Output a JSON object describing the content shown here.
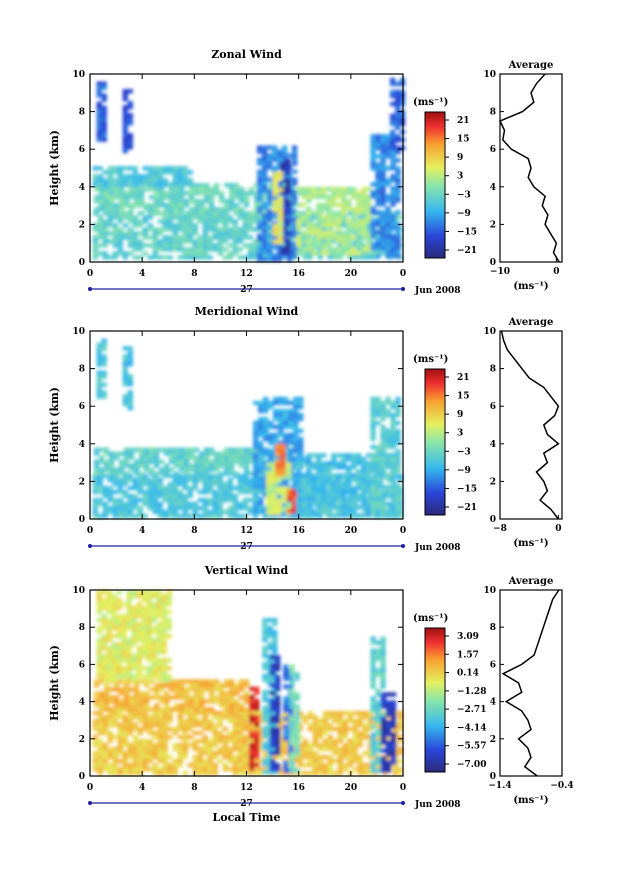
{
  "panels": [
    {
      "id": "zonal",
      "title": "Zonal Wind",
      "chart_data": {
        "type": "heatmap",
        "ylabel": "Height (km)",
        "xlim": [
          0,
          24
        ],
        "ylim": [
          0,
          10
        ],
        "xticks": [
          "0",
          "4",
          "8",
          "12",
          "16",
          "20",
          "0"
        ],
        "yticks": [
          "0",
          "2",
          "4",
          "6",
          "8",
          "10"
        ],
        "date_center": "27",
        "date_right": "Jun 2008",
        "colorbar": {
          "unit": "(ms⁻¹)",
          "ticks": [
            "21",
            "15",
            "9",
            "3",
            "−3",
            "−9",
            "−15",
            "−21"
          ],
          "range": [
            -24,
            24
          ]
        },
        "blobs": [
          {
            "x0": 0.2,
            "x1": 23.6,
            "y0": 0.2,
            "y1": 2.7,
            "v": -4
          },
          {
            "x0": 0.3,
            "x1": 15.5,
            "y0": 2.7,
            "y1": 4.2,
            "v": -3
          },
          {
            "x0": 0.2,
            "x1": 7.5,
            "y0": 4.2,
            "y1": 5.1,
            "v": -6
          },
          {
            "x0": 12.8,
            "x1": 15.8,
            "y0": 0.2,
            "y1": 6.2,
            "v": -12
          },
          {
            "x0": 14.6,
            "x1": 15.3,
            "y0": 0.5,
            "y1": 5.5,
            "v": -20
          },
          {
            "x0": 14.0,
            "x1": 14.5,
            "y0": 1.0,
            "y1": 4.8,
            "v": 6
          },
          {
            "x0": 15.8,
            "x1": 21.5,
            "y0": 0.5,
            "y1": 4.0,
            "v": 2
          },
          {
            "x0": 21.5,
            "x1": 23.8,
            "y0": 0.3,
            "y1": 6.8,
            "v": -12
          },
          {
            "x0": 0.5,
            "x1": 1.2,
            "y0": 6.6,
            "y1": 9.6,
            "v": -15
          },
          {
            "x0": 2.5,
            "x1": 3.2,
            "y0": 6.0,
            "y1": 9.2,
            "v": -16
          },
          {
            "x0": 23.0,
            "x1": 23.8,
            "y0": 6.0,
            "y1": 9.8,
            "v": -15
          }
        ]
      },
      "profile": {
        "title": "Average",
        "xlabel": "(ms⁻¹)",
        "xlim": [
          -10,
          1
        ],
        "ylim": [
          0,
          10
        ],
        "xticks": [
          "−10",
          "0"
        ],
        "yticks": [
          "0",
          "2",
          "4",
          "6",
          "8",
          "10"
        ],
        "points": [
          [
            0.5,
            0
          ],
          [
            -0.5,
            0.5
          ],
          [
            0,
            1
          ],
          [
            -1,
            1.5
          ],
          [
            -2,
            2
          ],
          [
            -1.5,
            2.5
          ],
          [
            -2.5,
            3
          ],
          [
            -2,
            3.5
          ],
          [
            -4,
            4
          ],
          [
            -5,
            4.5
          ],
          [
            -4.5,
            5
          ],
          [
            -5,
            5.5
          ],
          [
            -8,
            6
          ],
          [
            -9.5,
            6.5
          ],
          [
            -9.2,
            7
          ],
          [
            -10,
            7.5
          ],
          [
            -6,
            8
          ],
          [
            -4,
            8.5
          ],
          [
            -4.5,
            9
          ],
          [
            -3.5,
            9.5
          ],
          [
            -2,
            10
          ]
        ]
      }
    },
    {
      "id": "meridional",
      "title": "Meridional Wind",
      "chart_data": {
        "type": "heatmap",
        "ylabel": "Height (km)",
        "xlim": [
          0,
          24
        ],
        "ylim": [
          0,
          10
        ],
        "xticks": [
          "0",
          "4",
          "8",
          "12",
          "16",
          "20",
          "0"
        ],
        "yticks": [
          "0",
          "2",
          "4",
          "6",
          "8",
          "10"
        ],
        "date_center": "27",
        "date_right": "Jun 2008",
        "colorbar": {
          "unit": "(ms⁻¹)",
          "ticks": [
            "21",
            "15",
            "9",
            "3",
            "−3",
            "−9",
            "−15",
            "−21"
          ],
          "range": [
            -24,
            24
          ]
        },
        "blobs": [
          {
            "x0": 0.2,
            "x1": 23.6,
            "y0": 0.2,
            "y1": 2.4,
            "v": -6
          },
          {
            "x0": 0.3,
            "x1": 15.5,
            "y0": 2.4,
            "y1": 3.8,
            "v": -4
          },
          {
            "x0": 12.5,
            "x1": 16.2,
            "y0": 0.2,
            "y1": 6.5,
            "v": -10
          },
          {
            "x0": 13.5,
            "x1": 15.3,
            "y0": 0.3,
            "y1": 3.0,
            "v": 4
          },
          {
            "x0": 15.1,
            "x1": 15.6,
            "y0": 0.4,
            "y1": 1.6,
            "v": 18
          },
          {
            "x0": 14.2,
            "x1": 14.6,
            "y0": 2.5,
            "y1": 4.0,
            "v": 14
          },
          {
            "x0": 15.8,
            "x1": 21.5,
            "y0": 0.3,
            "y1": 3.5,
            "v": -7
          },
          {
            "x0": 21.5,
            "x1": 23.8,
            "y0": 0.3,
            "y1": 6.5,
            "v": -5
          },
          {
            "x0": 0.5,
            "x1": 1.2,
            "y0": 6.6,
            "y1": 9.6,
            "v": -6
          },
          {
            "x0": 2.5,
            "x1": 3.2,
            "y0": 6.0,
            "y1": 9.2,
            "v": -7
          }
        ]
      },
      "profile": {
        "title": "Average",
        "xlabel": "(ms⁻¹)",
        "xlim": [
          -8,
          0.5
        ],
        "ylim": [
          0,
          10
        ],
        "xticks": [
          "−8",
          "0"
        ],
        "yticks": [
          "0",
          "2",
          "4",
          "6",
          "8",
          "10"
        ],
        "points": [
          [
            0,
            0
          ],
          [
            -1,
            0.5
          ],
          [
            -2.5,
            1
          ],
          [
            -1.5,
            1.5
          ],
          [
            -2,
            2
          ],
          [
            -3,
            2.5
          ],
          [
            -1.5,
            3
          ],
          [
            -2,
            3.5
          ],
          [
            0,
            4
          ],
          [
            -1.5,
            4.5
          ],
          [
            -2,
            5
          ],
          [
            -0.5,
            5.5
          ],
          [
            0,
            6
          ],
          [
            -1,
            6.5
          ],
          [
            -2,
            7
          ],
          [
            -4,
            7.5
          ],
          [
            -5,
            8
          ],
          [
            -6,
            8.5
          ],
          [
            -7,
            9
          ],
          [
            -7.5,
            9.5
          ],
          [
            -7.8,
            10
          ]
        ]
      }
    },
    {
      "id": "vertical",
      "title": "Vertical Wind",
      "chart_data": {
        "type": "heatmap",
        "ylabel": "Height (km)",
        "xlabel": "Local Time",
        "xlim": [
          0,
          24
        ],
        "ylim": [
          0,
          10
        ],
        "xticks": [
          "0",
          "4",
          "8",
          "12",
          "16",
          "20",
          "0"
        ],
        "yticks": [
          "0",
          "2",
          "4",
          "6",
          "8",
          "10"
        ],
        "date_center": "27",
        "date_right": "Jun 2008",
        "colorbar": {
          "unit": "(ms⁻¹)",
          "ticks": [
            "3.09",
            "1.57",
            "0.14",
            "−1.28",
            "−2.71",
            "−4.14",
            "−5.57",
            "−7.00"
          ],
          "range": [
            -7.7,
            3.8
          ]
        },
        "blobs": [
          {
            "x0": 0.2,
            "x1": 23.6,
            "y0": 0.2,
            "y1": 3.5,
            "v": 0.3
          },
          {
            "x0": 0.3,
            "x1": 12.0,
            "y0": 3.5,
            "y1": 5.2,
            "v": 0.6
          },
          {
            "x0": 0.5,
            "x1": 6.0,
            "y0": 5.2,
            "y1": 10,
            "v": -0.6
          },
          {
            "x0": 12.2,
            "x1": 12.7,
            "y0": 0.4,
            "y1": 4.8,
            "v": 3.0
          },
          {
            "x0": 13.2,
            "x1": 14.0,
            "y0": 0.3,
            "y1": 8.5,
            "v": -3.5
          },
          {
            "x0": 13.8,
            "x1": 14.3,
            "y0": 0.3,
            "y1": 6.5,
            "v": -6.5
          },
          {
            "x0": 14.8,
            "x1": 15.3,
            "y0": 0.3,
            "y1": 6.0,
            "v": -5.0
          },
          {
            "x0": 15.3,
            "x1": 15.8,
            "y0": 0.3,
            "y1": 6.0,
            "v": -2.5
          },
          {
            "x0": 21.5,
            "x1": 22.3,
            "y0": 0.3,
            "y1": 7.5,
            "v": -3.0
          },
          {
            "x0": 22.3,
            "x1": 23.3,
            "y0": 0.2,
            "y1": 4.5,
            "v": -6.5
          }
        ]
      },
      "profile": {
        "title": "Average",
        "xlabel": "(ms⁻¹)",
        "xlim": [
          -1.4,
          -0.4
        ],
        "ylim": [
          0,
          10
        ],
        "xticks": [
          "−1.4",
          "−0.4"
        ],
        "yticks": [
          "0",
          "2",
          "4",
          "6",
          "8",
          "10"
        ],
        "points": [
          [
            -0.8,
            0
          ],
          [
            -1.0,
            0.5
          ],
          [
            -0.9,
            1
          ],
          [
            -0.95,
            1.5
          ],
          [
            -1.1,
            2
          ],
          [
            -0.9,
            2.5
          ],
          [
            -0.95,
            3
          ],
          [
            -1.05,
            3.5
          ],
          [
            -1.3,
            4
          ],
          [
            -1.05,
            4.5
          ],
          [
            -1.1,
            5
          ],
          [
            -1.35,
            5.5
          ],
          [
            -1.05,
            6
          ],
          [
            -0.85,
            6.5
          ],
          [
            -0.8,
            7
          ],
          [
            -0.75,
            7.5
          ],
          [
            -0.7,
            8
          ],
          [
            -0.65,
            8.5
          ],
          [
            -0.6,
            9
          ],
          [
            -0.55,
            9.5
          ],
          [
            -0.45,
            10
          ]
        ]
      }
    }
  ]
}
